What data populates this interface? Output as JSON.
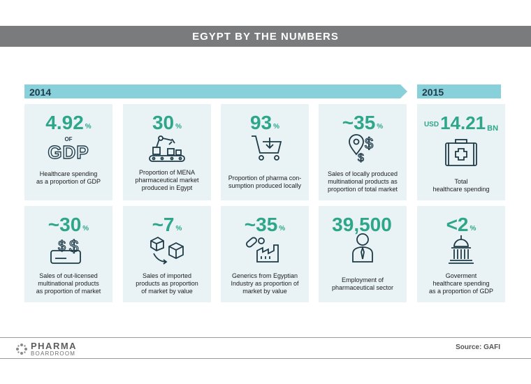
{
  "title": "EGYPT BY THE NUMBERS",
  "years": {
    "left": "2014",
    "right": "2015"
  },
  "colors": {
    "accent": "#2ea68a",
    "bar": "#88d0da",
    "card": "#e9f3f5",
    "header": "#7a7b7c",
    "icon": "#1f3b47"
  },
  "cards": [
    {
      "value": "4.92",
      "unit": "%",
      "extra1": "OF",
      "extra2": "GDP",
      "desc": [
        "Healthcare spending",
        "as a proportion of GDP"
      ],
      "icon": "gdp-text"
    },
    {
      "value": "30",
      "unit": "%",
      "desc": [
        "Proportion of MENA",
        "pharmaceutical market",
        "produced in Egypt"
      ],
      "icon": "robot-arm-icon"
    },
    {
      "value": "93",
      "unit": "%",
      "desc": [
        "Proportion of pharma con-",
        "sumption produced locally"
      ],
      "icon": "shopping-cart-icon"
    },
    {
      "value": "~35",
      "unit": "%",
      "desc": [
        "Sales of locally produced",
        "multinational products as",
        "proportion of total market"
      ],
      "icon": "location-dollar-icon"
    },
    {
      "prefix": "USD",
      "value": "14.21",
      "unit": "BN",
      "desc": [
        "Total",
        "healthcare spending"
      ],
      "icon": "medical-case-icon"
    },
    {
      "value": "~30",
      "unit": "%",
      "desc": [
        "Sales of out-licensed",
        "multinational products",
        "as proportion of market"
      ],
      "icon": "credit-card-dollar-icon"
    },
    {
      "value": "~7",
      "unit": "%",
      "desc": [
        "Sales of imported",
        "products as proportion",
        "of market by value"
      ],
      "icon": "boxes-icon"
    },
    {
      "value": "~35",
      "unit": "%",
      "desc": [
        "Generics from Egyptian",
        "Industry as proportion of",
        "market by value"
      ],
      "icon": "factory-pills-icon"
    },
    {
      "value": "39,500",
      "unit": "",
      "desc": [
        "Employment of",
        "pharmaceutical sector"
      ],
      "icon": "person-icon"
    },
    {
      "value": "<2",
      "unit": "%",
      "desc": [
        "Goverment",
        "healthcare spending",
        "as a proportion of GDP"
      ],
      "icon": "government-building-icon"
    }
  ],
  "footer": {
    "logo_line1": "PHARMA",
    "logo_line2": "BOARDROOM",
    "source": "Source: GAFI"
  }
}
